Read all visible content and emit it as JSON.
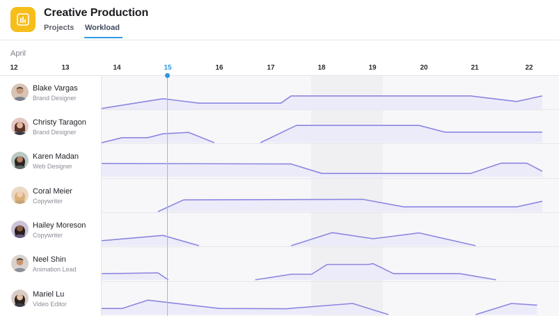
{
  "app": {
    "title": "Creative Production",
    "icon": "bar-chart-icon"
  },
  "tabs": [
    {
      "label": "Projects",
      "active": false
    },
    {
      "label": "Workload",
      "active": true
    }
  ],
  "timeline": {
    "month": "April",
    "days": [
      "12",
      "13",
      "14",
      "15",
      "16",
      "17",
      "18",
      "19",
      "20",
      "21",
      "22"
    ],
    "today": "15"
  },
  "colors": {
    "accent": "#2a97e0",
    "line": "#8b86e0",
    "fill": "#ecebfa",
    "app_icon": "#f6bd1b"
  },
  "people": [
    {
      "name": "Blake Vargas",
      "role": "Brand Designer",
      "avatar_color": "#d7c4b6"
    },
    {
      "name": "Christy Taragon",
      "role": "Brand Designer",
      "avatar_color": "#e4c7c4"
    },
    {
      "name": "Karen Madan",
      "role": "Web Designer",
      "avatar_color": "#b9c8c2"
    },
    {
      "name": "Coral Meier",
      "role": "Copywriter",
      "avatar_color": "#ead9c3"
    },
    {
      "name": "Hailey Moreson",
      "role": "Copywriter",
      "avatar_color": "#cbc2d8"
    },
    {
      "name": "Neel Shin",
      "role": "Animation Lead",
      "avatar_color": "#d9d2cc"
    },
    {
      "name": "Mariel Lu",
      "role": "Video Editor",
      "avatar_color": "#d8ccc6"
    }
  ],
  "chart_data": {
    "type": "area",
    "x": [
      "Apr 13.7",
      "Apr 14.9",
      "Apr 15.6",
      "Apr 16.5",
      "Apr 17.2",
      "Apr 17.4",
      "Apr 18.0",
      "Apr 18.6",
      "Apr 19.4",
      "Apr 20.0",
      "Apr 20.5",
      "Apr 21.1",
      "Apr 21.8",
      "Apr 22.3"
    ],
    "x_axis_days": [
      12,
      13,
      14,
      15,
      16,
      17,
      18,
      19,
      20,
      21,
      22
    ],
    "y_range": [
      0,
      1
    ],
    "series": [
      {
        "points": [
          [
            13.7,
            0.03
          ],
          [
            14.9,
            0.38
          ],
          [
            15.6,
            0.22
          ],
          [
            17.2,
            0.22
          ],
          [
            17.4,
            0.48
          ],
          [
            20.9,
            0.48
          ],
          [
            21.8,
            0.28
          ],
          [
            22.3,
            0.48
          ]
        ]
      },
      {
        "segments": [
          [
            [
              13.7,
              0.0
            ],
            [
              14.1,
              0.18
            ],
            [
              14.6,
              0.18
            ],
            [
              14.9,
              0.32
            ],
            [
              15.4,
              0.37
            ],
            [
              15.9,
              0.0
            ]
          ],
          [
            [
              16.8,
              0.0
            ],
            [
              17.5,
              0.62
            ],
            [
              19.9,
              0.62
            ],
            [
              20.4,
              0.38
            ],
            [
              21.9,
              0.38
            ],
            [
              22.3,
              0.38
            ]
          ]
        ]
      },
      {
        "points": [
          [
            13.7,
            0.48
          ],
          [
            17.4,
            0.46
          ],
          [
            18.0,
            0.12
          ],
          [
            20.9,
            0.12
          ],
          [
            21.5,
            0.49
          ],
          [
            22.0,
            0.49
          ],
          [
            22.3,
            0.2
          ]
        ]
      },
      {
        "segments": [
          [
            [
              14.8,
              0.0
            ],
            [
              15.3,
              0.42
            ],
            [
              18.8,
              0.44
            ],
            [
              19.6,
              0.17
            ],
            [
              21.8,
              0.17
            ],
            [
              22.3,
              0.37
            ]
          ]
        ]
      },
      {
        "segments": [
          [
            [
              13.7,
              0.18
            ],
            [
              14.9,
              0.37
            ],
            [
              15.6,
              0.0
            ]
          ],
          [
            [
              17.4,
              0.0
            ],
            [
              18.2,
              0.47
            ],
            [
              19.0,
              0.25
            ],
            [
              19.9,
              0.46
            ],
            [
              21.0,
              0.0
            ]
          ]
        ]
      },
      {
        "segments": [
          [
            [
              13.7,
              0.22
            ],
            [
              14.8,
              0.25
            ],
            [
              15.0,
              0.0
            ]
          ],
          [
            [
              16.7,
              0.0
            ],
            [
              17.4,
              0.2
            ],
            [
              17.8,
              0.2
            ],
            [
              18.1,
              0.55
            ],
            [
              18.9,
              0.55
            ],
            [
              19.0,
              0.58
            ],
            [
              19.4,
              0.22
            ],
            [
              20.7,
              0.22
            ],
            [
              21.4,
              0.0
            ]
          ]
        ]
      },
      {
        "segments": [
          [
            [
              13.7,
              0.22
            ],
            [
              14.1,
              0.22
            ],
            [
              14.6,
              0.52
            ],
            [
              16.0,
              0.22
            ],
            [
              17.3,
              0.21
            ],
            [
              18.6,
              0.4
            ],
            [
              19.3,
              0.0
            ]
          ],
          [
            [
              21.0,
              0.0
            ],
            [
              21.7,
              0.4
            ],
            [
              22.2,
              0.34
            ]
          ]
        ]
      }
    ]
  }
}
